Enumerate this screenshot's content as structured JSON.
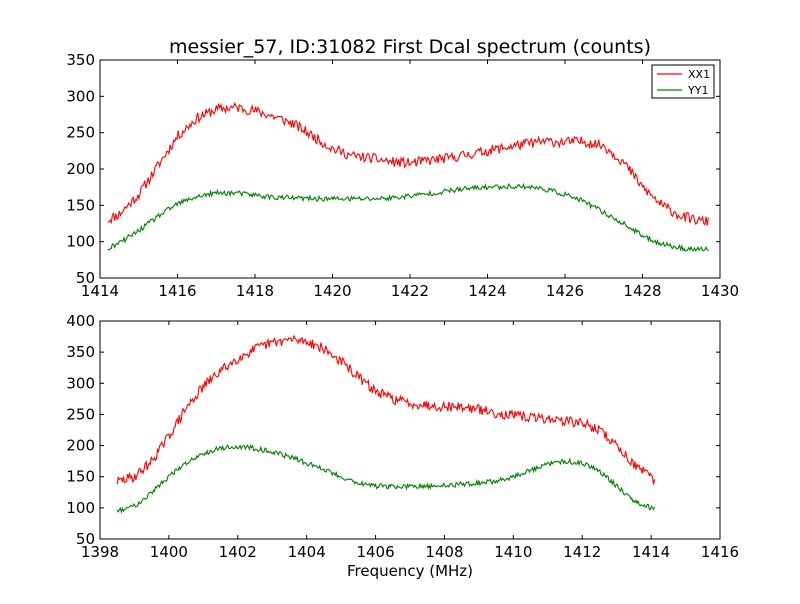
{
  "chart_data": [
    {
      "type": "line",
      "title": "messier_57, ID:31082 First Dcal spectrum (counts)",
      "xlabel": "",
      "ylabel": "",
      "xlim": [
        1414,
        1430
      ],
      "ylim": [
        50,
        350
      ],
      "xticks": [
        "1414",
        "1416",
        "1418",
        "1420",
        "1422",
        "1424",
        "1426",
        "1428",
        "1430"
      ],
      "yticks": [
        "50",
        "100",
        "150",
        "200",
        "250",
        "300",
        "350"
      ],
      "grid": false,
      "legend": "top-right",
      "series": [
        {
          "name": "XX1",
          "color": "#ff0000",
          "x": [
            1414.2,
            1414.5,
            1415.0,
            1415.5,
            1416.0,
            1416.5,
            1417.0,
            1417.5,
            1418.0,
            1418.5,
            1419.0,
            1419.5,
            1420.0,
            1420.5,
            1421.0,
            1421.5,
            1422.0,
            1422.5,
            1423.0,
            1423.5,
            1424.0,
            1424.5,
            1425.0,
            1425.5,
            1426.0,
            1426.5,
            1427.0,
            1427.5,
            1428.0,
            1428.5,
            1429.0,
            1429.5,
            1429.7
          ],
          "values": [
            130,
            138,
            165,
            205,
            245,
            270,
            282,
            285,
            280,
            272,
            262,
            245,
            228,
            218,
            215,
            210,
            208,
            212,
            215,
            220,
            225,
            230,
            235,
            238,
            237,
            238,
            232,
            210,
            175,
            150,
            135,
            128,
            128
          ],
          "noise": 7
        },
        {
          "name": "YY1",
          "color": "#008000",
          "x": [
            1414.2,
            1414.5,
            1415.0,
            1415.5,
            1416.0,
            1416.5,
            1417.0,
            1417.5,
            1418.0,
            1418.5,
            1419.0,
            1419.5,
            1420.0,
            1420.5,
            1421.0,
            1421.5,
            1422.0,
            1422.5,
            1423.0,
            1423.5,
            1424.0,
            1424.5,
            1425.0,
            1425.5,
            1426.0,
            1426.5,
            1427.0,
            1427.5,
            1428.0,
            1428.5,
            1429.0,
            1429.5,
            1429.7
          ],
          "values": [
            90,
            98,
            115,
            135,
            152,
            162,
            167,
            167,
            164,
            161,
            160,
            159,
            159,
            159,
            159,
            160,
            163,
            166,
            170,
            173,
            175,
            176,
            176,
            172,
            165,
            155,
            140,
            125,
            108,
            97,
            91,
            89,
            90
          ],
          "noise": 3.5
        }
      ]
    },
    {
      "type": "line",
      "title": "",
      "xlabel": "Frequency (MHz)",
      "ylabel": "",
      "xlim": [
        1398,
        1416
      ],
      "ylim": [
        50,
        400
      ],
      "xticks": [
        "1398",
        "1400",
        "1402",
        "1404",
        "1406",
        "1408",
        "1410",
        "1412",
        "1414",
        "1416"
      ],
      "yticks": [
        "50",
        "100",
        "150",
        "200",
        "250",
        "300",
        "350",
        "400"
      ],
      "grid": false,
      "series": [
        {
          "name": "",
          "color": "#ff0000",
          "x": [
            1398.5,
            1399.0,
            1399.5,
            1400.0,
            1400.5,
            1401.0,
            1401.5,
            1402.0,
            1402.5,
            1403.0,
            1403.5,
            1404.0,
            1404.5,
            1405.0,
            1405.5,
            1406.0,
            1406.5,
            1407.0,
            1407.5,
            1408.0,
            1408.5,
            1409.0,
            1409.5,
            1410.0,
            1410.5,
            1411.0,
            1411.5,
            1412.0,
            1412.5,
            1413.0,
            1413.5,
            1414.0,
            1414.1
          ],
          "values": [
            142,
            150,
            175,
            215,
            260,
            295,
            320,
            340,
            355,
            365,
            370,
            368,
            355,
            335,
            310,
            287,
            275,
            268,
            265,
            263,
            262,
            258,
            252,
            248,
            245,
            243,
            240,
            236,
            225,
            200,
            170,
            148,
            143
          ],
          "noise": 8
        },
        {
          "name": "",
          "color": "#008000",
          "x": [
            1398.5,
            1399.0,
            1399.5,
            1400.0,
            1400.5,
            1401.0,
            1401.5,
            1402.0,
            1402.5,
            1403.0,
            1403.5,
            1404.0,
            1404.5,
            1405.0,
            1405.5,
            1406.0,
            1406.5,
            1407.0,
            1407.5,
            1408.0,
            1408.5,
            1409.0,
            1409.5,
            1410.0,
            1410.5,
            1411.0,
            1411.5,
            1412.0,
            1412.5,
            1413.0,
            1413.5,
            1414.0,
            1414.1
          ],
          "values": [
            95,
            103,
            125,
            150,
            172,
            188,
            196,
            198,
            196,
            190,
            182,
            172,
            162,
            150,
            140,
            135,
            134,
            134,
            134,
            136,
            138,
            140,
            143,
            150,
            160,
            170,
            175,
            172,
            160,
            135,
            112,
            100,
            99
          ],
          "noise": 4
        }
      ]
    }
  ]
}
